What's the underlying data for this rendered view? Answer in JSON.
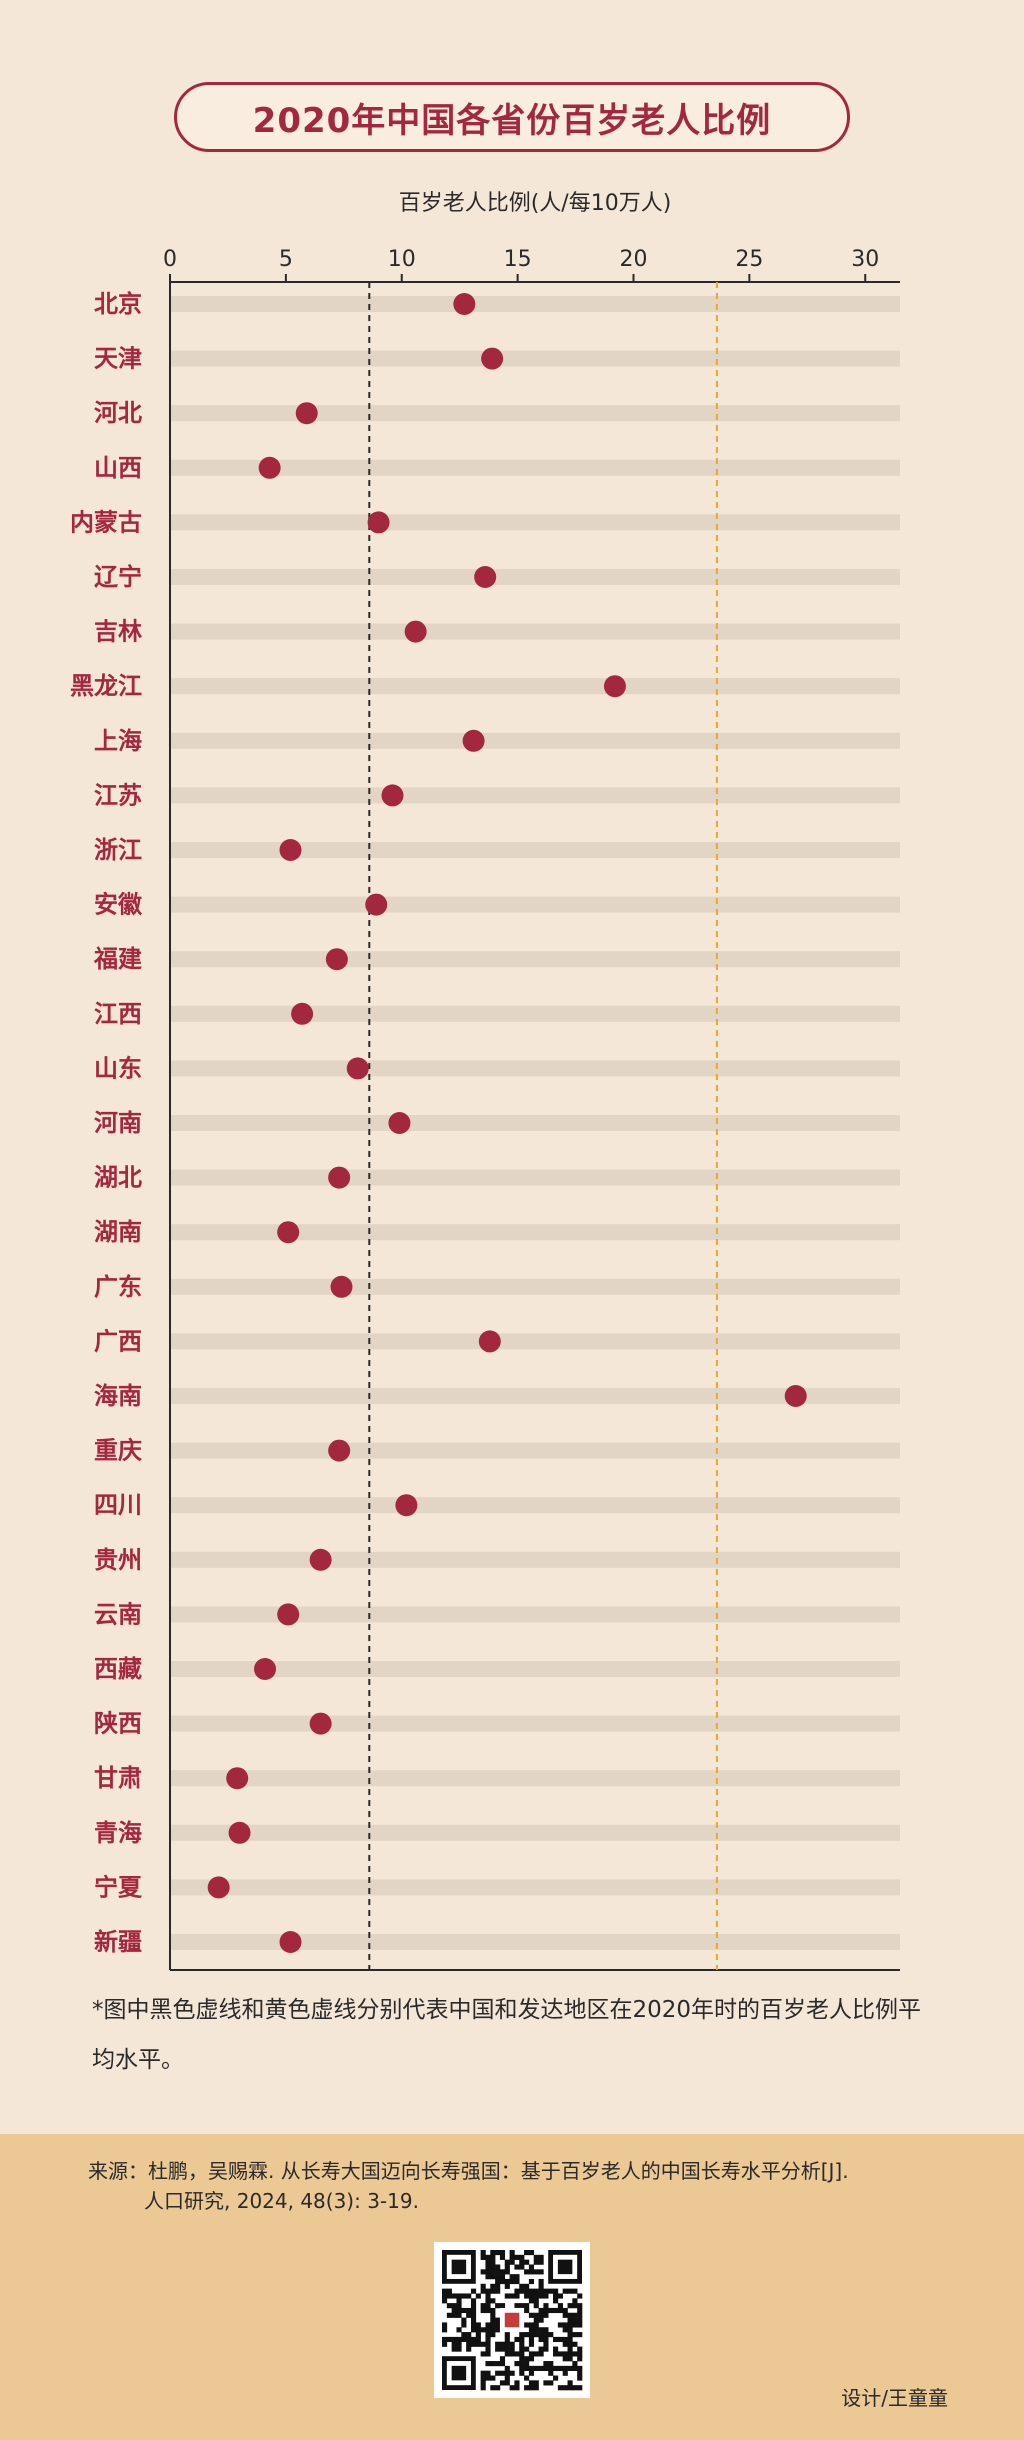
{
  "title": "2020年中国各省份百岁老人比例",
  "chart_data": {
    "type": "scatter",
    "orientation": "horizontal-dot",
    "xlabel": "百岁老人比例(人/每10万人)",
    "xlim": [
      0,
      31.5
    ],
    "xticks": [
      0,
      5,
      10,
      15,
      20,
      25,
      30
    ],
    "reference_lines": [
      {
        "value": 8.6,
        "color": "#2a2a2a",
        "style": "dashed"
      },
      {
        "value": 23.6,
        "color": "#e8a838",
        "style": "dashed"
      }
    ],
    "categories": [
      "北京",
      "天津",
      "河北",
      "山西",
      "内蒙古",
      "辽宁",
      "吉林",
      "黑龙江",
      "上海",
      "江苏",
      "浙江",
      "安徽",
      "福建",
      "江西",
      "山东",
      "河南",
      "湖北",
      "湖南",
      "广东",
      "广西",
      "海南",
      "重庆",
      "四川",
      "贵州",
      "云南",
      "西藏",
      "陕西",
      "甘肃",
      "青海",
      "宁夏",
      "新疆"
    ],
    "values": [
      12.7,
      13.9,
      5.9,
      4.3,
      9.0,
      13.6,
      10.6,
      19.2,
      13.1,
      9.6,
      5.2,
      8.9,
      7.2,
      5.7,
      8.1,
      9.9,
      7.3,
      5.1,
      7.4,
      13.8,
      27.0,
      7.3,
      10.2,
      6.5,
      5.1,
      4.1,
      6.5,
      2.9,
      3.0,
      2.1,
      5.2
    ],
    "grid": false,
    "legend": "none"
  },
  "note": "*图中黑色虚线和黄色虚线分别代表中国和发达地区在2020年时的百岁老人比例平均水平。",
  "source_line1": "来源：杜鹏，吴赐霖. 从长寿大国迈向长寿强国：基于百岁老人的中国长寿水平分析[J].",
  "source_line2": "人口研究, 2024, 48(3): 3-19.",
  "credit": "设计/王童童",
  "colors": {
    "accent": "#a3283f",
    "track": "#e2d5c5",
    "background": "#f4e7d8",
    "footer": "#ebc894"
  }
}
